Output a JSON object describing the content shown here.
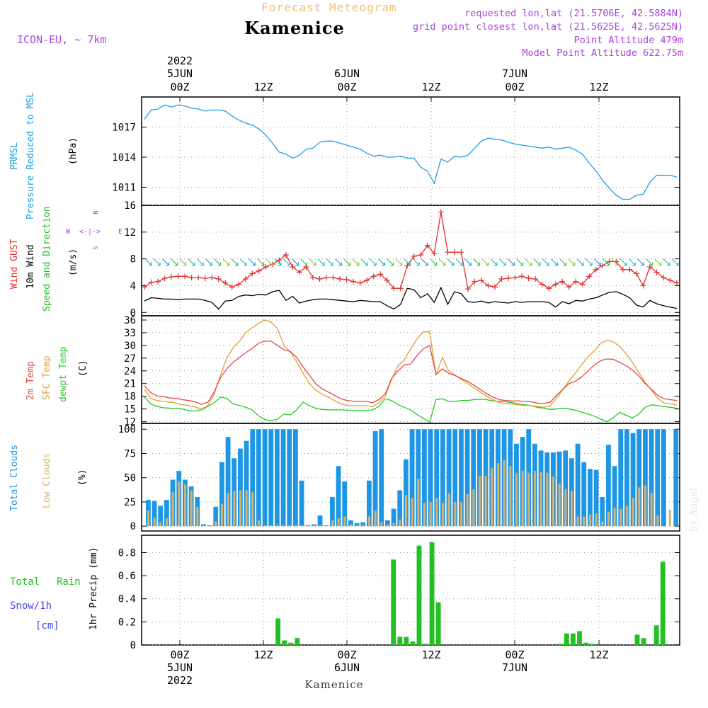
{
  "header": {
    "subtitle": "Forecast Meteogram",
    "station": "Kamenice",
    "model": "ICON-EU, ~ 7km",
    "req_point": "requested lon,lat (21.5706E, 42.5884N)",
    "grid_point": "grid point closest lon,lat (21.5625E, 42.5625N)",
    "point_alt": "Point Altitude 479m",
    "model_alt": "Model Point Altitude 622.75m",
    "footer_station": "Kamenice",
    "credit": "by Angel"
  },
  "time_axis": {
    "top_labels": [
      {
        "hour": "00Z",
        "day": "5JUN",
        "year": "2022"
      },
      {
        "hour": "12Z",
        "day": "",
        "year": ""
      },
      {
        "hour": "00Z",
        "day": "6JUN",
        "year": ""
      },
      {
        "hour": "12Z",
        "day": "",
        "year": ""
      },
      {
        "hour": "00Z",
        "day": "7JUN",
        "year": ""
      },
      {
        "hour": "12Z",
        "day": "",
        "year": ""
      }
    ],
    "bottom_labels": [
      {
        "hour": "00Z",
        "day": "5JUN",
        "year": "2022"
      },
      {
        "hour": "12Z",
        "day": "",
        "year": ""
      },
      {
        "hour": "00Z",
        "day": "6JUN",
        "year": ""
      },
      {
        "hour": "12Z",
        "day": "",
        "year": ""
      },
      {
        "hour": "00Z",
        "day": "7JUN",
        "year": ""
      },
      {
        "hour": "12Z",
        "day": "",
        "year": ""
      }
    ]
  },
  "colors": {
    "pressure": "#1e9ee6",
    "gust": "#e03030",
    "wind": "#000000",
    "speed_dir": "#22bb22",
    "temp2m": "#e84545",
    "sfc_temp": "#e0a030",
    "dewpt": "#22cc22",
    "total_cloud": "#1e96e6",
    "low_cloud": "#d4b070",
    "rain": "#22c022",
    "snow": "#4444ee",
    "direction": "#aa44dd"
  },
  "panels": {
    "pressure": {
      "label1": "PRMSL",
      "label2": "Pressure Reduced to MSL",
      "unit": "(hPa)"
    },
    "wind": {
      "label1": "Wind GUST",
      "label2": "10m Wind",
      "label3": "Speed and Direction",
      "unit": "(m/s)",
      "compass_n": "N",
      "compass_s": "S",
      "compass_arrows": "<-|->",
      "compass_w": "W",
      "compass_e": "E"
    },
    "temp": {
      "label1": "2m Temp",
      "label2": "SFC Temp",
      "label3": "dewpt Temp",
      "unit": "(C)"
    },
    "cloud": {
      "label1": "Total Clouds",
      "label2": "Low Clouds",
      "unit": "(%)"
    },
    "precip": {
      "label1": "Total",
      "label1b": "Rain",
      "label2": "Snow/1h",
      "label3": "[cm]",
      "unit": "1hr Precip (mm)"
    }
  },
  "chart_data": [
    {
      "type": "line",
      "title": "PRMSL",
      "ylabel": "(hPa)",
      "ylim": [
        1009.2,
        1020
      ],
      "yticks": [
        1011,
        1014,
        1017
      ],
      "series": [
        {
          "name": "PRMSL",
          "values": [
            1017.8,
            1018.7,
            1018.8,
            1019.2,
            1019.0,
            1019.2,
            1019.1,
            1018.9,
            1018.8,
            1018.6,
            1018.7,
            1018.7,
            1018.6,
            1018.1,
            1017.7,
            1017.4,
            1017.2,
            1016.8,
            1016.2,
            1015.4,
            1014.5,
            1014.3,
            1013.9,
            1014.2,
            1014.8,
            1014.9,
            1015.5,
            1015.6,
            1015.6,
            1015.4,
            1015.2,
            1015.0,
            1014.8,
            1014.4,
            1014.1,
            1014.2,
            1014.0,
            1014.0,
            1014.1,
            1013.9,
            1013.9,
            1013.0,
            1012.6,
            1011.4,
            1013.8,
            1013.5,
            1014.1,
            1014.0,
            1014.2,
            1014.9,
            1015.6,
            1015.9,
            1015.8,
            1015.7,
            1015.5,
            1015.3,
            1015.2,
            1015.1,
            1015.0,
            1014.9,
            1015.0,
            1014.8,
            1014.9,
            1015.0,
            1014.7,
            1014.3,
            1013.4,
            1012.6,
            1011.7,
            1010.9,
            1010.2,
            1009.8,
            1009.8,
            1010.2,
            1010.3,
            1011.5,
            1012.2,
            1012.2,
            1012.2,
            1012.0
          ]
        }
      ]
    },
    {
      "type": "line",
      "title": "Wind GUST / 10m Wind",
      "ylabel": "(m/s)",
      "ylim": [
        -0.5,
        16
      ],
      "yticks": [
        0,
        4,
        8,
        12,
        16
      ],
      "series": [
        {
          "name": "Wind GUST",
          "values": [
            3.8,
            4.5,
            4.6,
            5.1,
            5.3,
            5.4,
            5.4,
            5.2,
            5.2,
            5.1,
            5.2,
            5.0,
            4.4,
            3.8,
            4.2,
            5.0,
            5.8,
            6.2,
            6.8,
            7.2,
            7.8,
            8.6,
            6.8,
            6.0,
            6.8,
            5.2,
            5.0,
            5.2,
            5.2,
            5.0,
            4.9,
            4.6,
            4.4,
            4.8,
            5.4,
            5.7,
            4.8,
            3.6,
            3.6,
            7.0,
            8.4,
            8.6,
            10.0,
            8.8,
            15.0,
            9.0,
            9.0,
            9.0,
            3.5,
            4.6,
            4.8,
            4.0,
            3.8,
            5.0,
            5.1,
            5.2,
            5.4,
            5.1,
            5.0,
            4.2,
            3.6,
            4.2,
            4.6,
            3.8,
            4.6,
            4.2,
            5.4,
            6.4,
            7.0,
            7.6,
            7.6,
            6.4,
            6.4,
            5.8,
            4.0,
            6.8,
            6.0,
            5.2,
            4.8,
            4.4
          ]
        },
        {
          "name": "10m Wind",
          "values": [
            1.7,
            2.2,
            2.1,
            2.0,
            2.0,
            1.9,
            2.0,
            2.0,
            2.0,
            1.8,
            1.5,
            0.5,
            1.7,
            1.8,
            2.4,
            2.6,
            2.5,
            2.7,
            2.6,
            3.1,
            3.3,
            1.8,
            2.4,
            1.4,
            1.7,
            1.9,
            2.0,
            2.0,
            1.9,
            1.8,
            1.7,
            1.6,
            1.8,
            1.7,
            1.6,
            1.6,
            1.0,
            0.5,
            1.2,
            3.6,
            3.4,
            2.2,
            2.8,
            1.5,
            3.7,
            1.2,
            3.1,
            2.8,
            1.6,
            1.5,
            1.7,
            1.4,
            1.6,
            1.5,
            1.4,
            1.6,
            1.5,
            1.6,
            1.6,
            1.6,
            1.5,
            0.8,
            1.6,
            1.3,
            1.8,
            1.7,
            2.0,
            2.2,
            2.6,
            3.0,
            3.1,
            2.7,
            2.2,
            1.1,
            0.8,
            1.8,
            1.3,
            1.0,
            0.8,
            0.6
          ]
        }
      ]
    },
    {
      "type": "line",
      "title": "Temperature",
      "ylabel": "(C)",
      "ylim": [
        11.6,
        37
      ],
      "yticks": [
        12,
        15,
        18,
        21,
        24,
        27,
        30,
        33,
        36
      ],
      "series": [
        {
          "name": "2m Temp",
          "values": [
            20.5,
            18.8,
            18.1,
            17.9,
            17.6,
            17.5,
            17.2,
            17.0,
            16.7,
            16.1,
            16.6,
            19.0,
            22.4,
            24.5,
            26.0,
            27.2,
            28.3,
            29.3,
            30.5,
            31.0,
            31.0,
            30.0,
            29.0,
            28.6,
            27.2,
            25.0,
            23.0,
            21.0,
            19.8,
            19.0,
            18.2,
            17.4,
            17.0,
            16.8,
            16.8,
            16.8,
            16.5,
            17.2,
            18.6,
            22.2,
            24.0,
            25.4,
            25.6,
            27.6,
            29.2,
            30.0,
            23.1,
            24.5,
            23.4,
            22.9,
            22.2,
            21.5,
            20.6,
            19.6,
            18.6,
            17.8,
            17.2,
            17.0,
            16.9,
            16.9,
            16.8,
            16.7,
            16.4,
            16.3,
            16.6,
            18.2,
            19.6,
            21.0,
            21.6,
            22.6,
            24.0,
            25.4,
            26.4,
            26.8,
            26.7,
            26.0,
            25.2,
            24.2,
            22.8,
            21.0,
            19.6,
            18.2,
            17.4,
            17.2,
            17.0
          ]
        },
        {
          "name": "SFC Temp",
          "values": [
            19.6,
            17.5,
            17.0,
            16.8,
            16.6,
            16.4,
            16.0,
            15.8,
            15.5,
            15.0,
            15.8,
            18.5,
            23.0,
            27.0,
            29.5,
            31.0,
            33.0,
            34.2,
            35.2,
            36.0,
            35.5,
            34.0,
            30.0,
            28.5,
            26.2,
            23.5,
            21.0,
            19.5,
            18.5,
            17.8,
            17.0,
            16.2,
            15.8,
            15.8,
            15.8,
            15.8,
            15.5,
            16.5,
            18.0,
            22.0,
            25.2,
            26.6,
            29.2,
            31.5,
            33.2,
            33.2,
            23.0,
            27.2,
            24.0,
            23.0,
            22.0,
            21.0,
            20.0,
            19.0,
            18.0,
            17.2,
            16.5,
            16.3,
            16.2,
            16.0,
            15.8,
            15.8,
            15.6,
            15.4,
            15.8,
            17.5,
            19.6,
            21.6,
            23.5,
            25.5,
            27.3,
            28.8,
            30.5,
            31.2,
            30.8,
            29.8,
            28.0,
            26.0,
            23.6,
            21.3,
            19.4,
            17.5,
            16.4,
            16.2,
            15.9
          ]
        },
        {
          "name": "dewpt Temp",
          "values": [
            17.8,
            16.2,
            15.6,
            15.3,
            15.2,
            15.1,
            15.0,
            14.6,
            14.5,
            14.8,
            15.6,
            16.5,
            17.8,
            17.5,
            16.2,
            15.8,
            15.4,
            14.8,
            13.4,
            12.5,
            12.2,
            12.6,
            13.8,
            13.6,
            14.8,
            16.6,
            15.8,
            15.2,
            14.9,
            14.8,
            14.8,
            14.8,
            14.7,
            14.6,
            14.6,
            14.6,
            14.8,
            15.6,
            17.4,
            17.0,
            16.0,
            15.4,
            14.8,
            13.7,
            12.8,
            11.9,
            17.2,
            17.4,
            16.8,
            16.8,
            17.0,
            17.0,
            17.2,
            17.3,
            17.2,
            16.9,
            16.8,
            16.7,
            16.5,
            16.2,
            16.0,
            15.8,
            15.4,
            15.2,
            14.9,
            15.0,
            15.2,
            15.0,
            14.7,
            14.2,
            13.8,
            13.3,
            12.6,
            12.0,
            13.0,
            14.2,
            13.5,
            12.9,
            13.8,
            15.4,
            16.0,
            15.8,
            15.6,
            15.4,
            15.2
          ]
        }
      ]
    },
    {
      "type": "bar",
      "title": "Clouds",
      "ylabel": "(%)",
      "ylim": [
        -5,
        106
      ],
      "yticks": [
        0,
        25,
        50,
        75,
        100
      ],
      "series": [
        {
          "name": "Total Clouds",
          "values": [
            27,
            26,
            21,
            27,
            48,
            57,
            48,
            41,
            30,
            2,
            1,
            20,
            66,
            92,
            70,
            80,
            88,
            100,
            100,
            100,
            100,
            100,
            100,
            100,
            100,
            47,
            1,
            2,
            11,
            1,
            30,
            62,
            46,
            6,
            3,
            4,
            47,
            98,
            100,
            6,
            18,
            37,
            69,
            100,
            100,
            100,
            100,
            100,
            100,
            100,
            100,
            100,
            100,
            100,
            100,
            100,
            100,
            100,
            100,
            100,
            85,
            92,
            100,
            85,
            78,
            76,
            76,
            77,
            78,
            70,
            85,
            66,
            59,
            58,
            30,
            84,
            62,
            100,
            100,
            96,
            100,
            100,
            100,
            100,
            100,
            0,
            100
          ]
        },
        {
          "name": "Low Clouds",
          "values": [
            16,
            9,
            4,
            8,
            35,
            46,
            43,
            37,
            20,
            1,
            1,
            5,
            23,
            34,
            36,
            37,
            37,
            35,
            6,
            1,
            1,
            1,
            1,
            1,
            1,
            1,
            1,
            2,
            1,
            1,
            6,
            8,
            10,
            2,
            1,
            1,
            10,
            16,
            4,
            2,
            3,
            7,
            32,
            29,
            49,
            24,
            25,
            29,
            24,
            34,
            25,
            25,
            33,
            38,
            52,
            52,
            60,
            65,
            68,
            62,
            55,
            57,
            55,
            57,
            56,
            55,
            51,
            44,
            38,
            36,
            10,
            10,
            12,
            13,
            5,
            15,
            19,
            18,
            21,
            29,
            40,
            42,
            34,
            11,
            0,
            17,
            0
          ]
        }
      ]
    },
    {
      "type": "bar",
      "title": "1hr Precip",
      "ylabel": "1hr Precip (mm)",
      "ylim": [
        0,
        0.95
      ],
      "yticks": [
        0,
        0.2,
        0.4,
        0.6,
        0.8
      ],
      "series": [
        {
          "name": "Total Rain",
          "values": [
            0,
            0,
            0,
            0,
            0,
            0,
            0,
            0,
            0,
            0,
            0,
            0,
            0,
            0,
            0,
            0,
            0,
            0,
            0,
            0,
            0.23,
            0.04,
            0.02,
            0.06,
            0,
            0,
            0,
            0,
            0,
            0,
            0,
            0,
            0,
            0,
            0,
            0,
            0,
            0,
            0.74,
            0.07,
            0.07,
            0.03,
            0.86,
            0.01,
            0.89,
            0.37,
            0,
            0,
            0,
            0,
            0,
            0,
            0,
            0,
            0,
            0,
            0,
            0,
            0,
            0,
            0,
            0,
            0,
            0,
            0.01,
            0.1,
            0.1,
            0.12,
            0.02,
            0.01,
            0,
            0,
            0,
            0,
            0,
            0,
            0.09,
            0.06,
            0,
            0.17,
            0.72,
            0,
            0
          ]
        }
      ]
    }
  ]
}
